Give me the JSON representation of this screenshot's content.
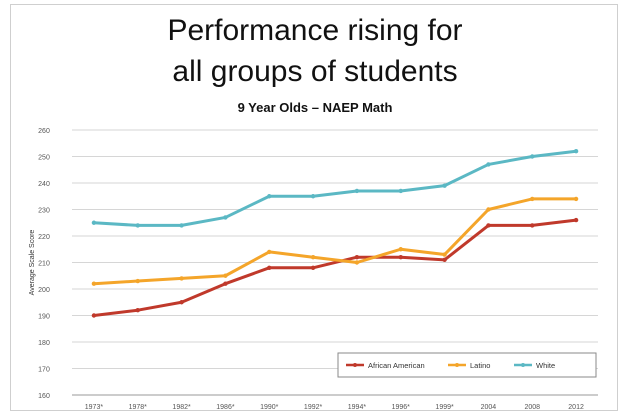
{
  "chart_data": {
    "type": "line",
    "title": "Performance rising for",
    "title_line2": "all groups of students",
    "subtitle": "9 Year Olds – NAEP Math",
    "ylabel": "Average Scale Score",
    "xlabel": "",
    "categories": [
      "1973*",
      "1978*",
      "1982*",
      "1986*",
      "1990*",
      "1992*",
      "1994*",
      "1996*",
      "1999*",
      "2004",
      "2008",
      "2012"
    ],
    "ylim": [
      160,
      260
    ],
    "yticks": [
      160,
      170,
      180,
      190,
      200,
      210,
      220,
      230,
      240,
      250,
      260
    ],
    "grid": true,
    "legend": "bottom-right",
    "series": [
      {
        "name": "African American",
        "color": "#c0392b",
        "values": [
          190,
          192,
          195,
          202,
          208,
          208,
          212,
          212,
          211,
          224,
          224,
          226
        ]
      },
      {
        "name": "Latino",
        "color": "#f4a52a",
        "values": [
          202,
          203,
          204,
          205,
          214,
          212,
          210,
          215,
          213,
          230,
          234,
          234
        ]
      },
      {
        "name": "White",
        "color": "#5bb8c4",
        "values": [
          225,
          224,
          224,
          227,
          235,
          235,
          237,
          237,
          239,
          247,
          250,
          252
        ]
      }
    ]
  }
}
